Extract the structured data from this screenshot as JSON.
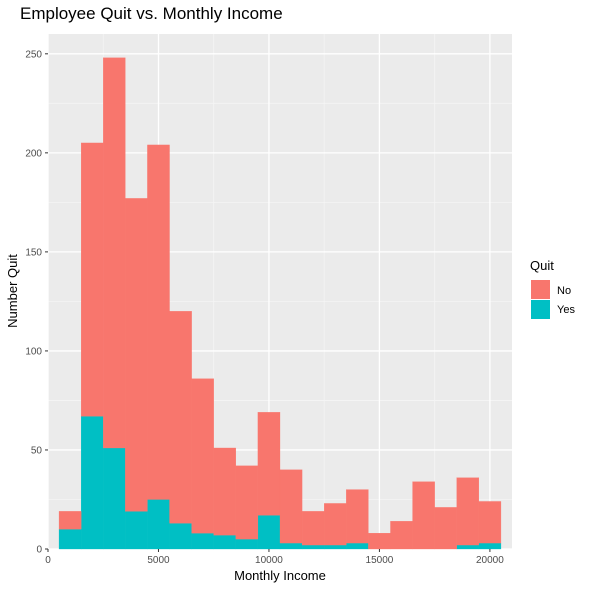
{
  "chart_data": {
    "type": "bar",
    "title": "Employee Quit vs. Monthly Income",
    "xlabel": "Monthly Income",
    "ylabel": "Number Quit",
    "xlim": [
      0,
      21000
    ],
    "ylim": [
      0,
      260
    ],
    "x_ticks": [
      0,
      5000,
      10000,
      15000,
      20000
    ],
    "x_tick_labels": [
      "0",
      "5000",
      "10000",
      "15000",
      "20000"
    ],
    "y_ticks": [
      0,
      50,
      100,
      150,
      200,
      250
    ],
    "y_tick_labels": [
      "0",
      "50",
      "100",
      "150",
      "200",
      "250"
    ],
    "stacked": true,
    "bin_width": 1000,
    "x": [
      1000,
      2000,
      3000,
      4000,
      5000,
      6000,
      7000,
      8000,
      9000,
      10000,
      11000,
      12000,
      13000,
      14000,
      15000,
      16000,
      17000,
      18000,
      19000,
      20000
    ],
    "series": [
      {
        "name": "Yes",
        "color": "#00BFC4",
        "values": [
          10,
          67,
          51,
          19,
          25,
          13,
          8,
          7,
          5,
          17,
          3,
          2,
          2,
          3,
          0,
          0,
          0,
          0,
          2,
          3
        ]
      },
      {
        "name": "No",
        "color": "#F8766D",
        "values": [
          9,
          138,
          197,
          158,
          179,
          107,
          78,
          44,
          37,
          52,
          37,
          17,
          21,
          27,
          8,
          14,
          34,
          21,
          34,
          21
        ]
      }
    ],
    "legend": {
      "title": "Quit",
      "entries": [
        "No",
        "Yes"
      ],
      "placement": "right"
    },
    "grid": true
  }
}
